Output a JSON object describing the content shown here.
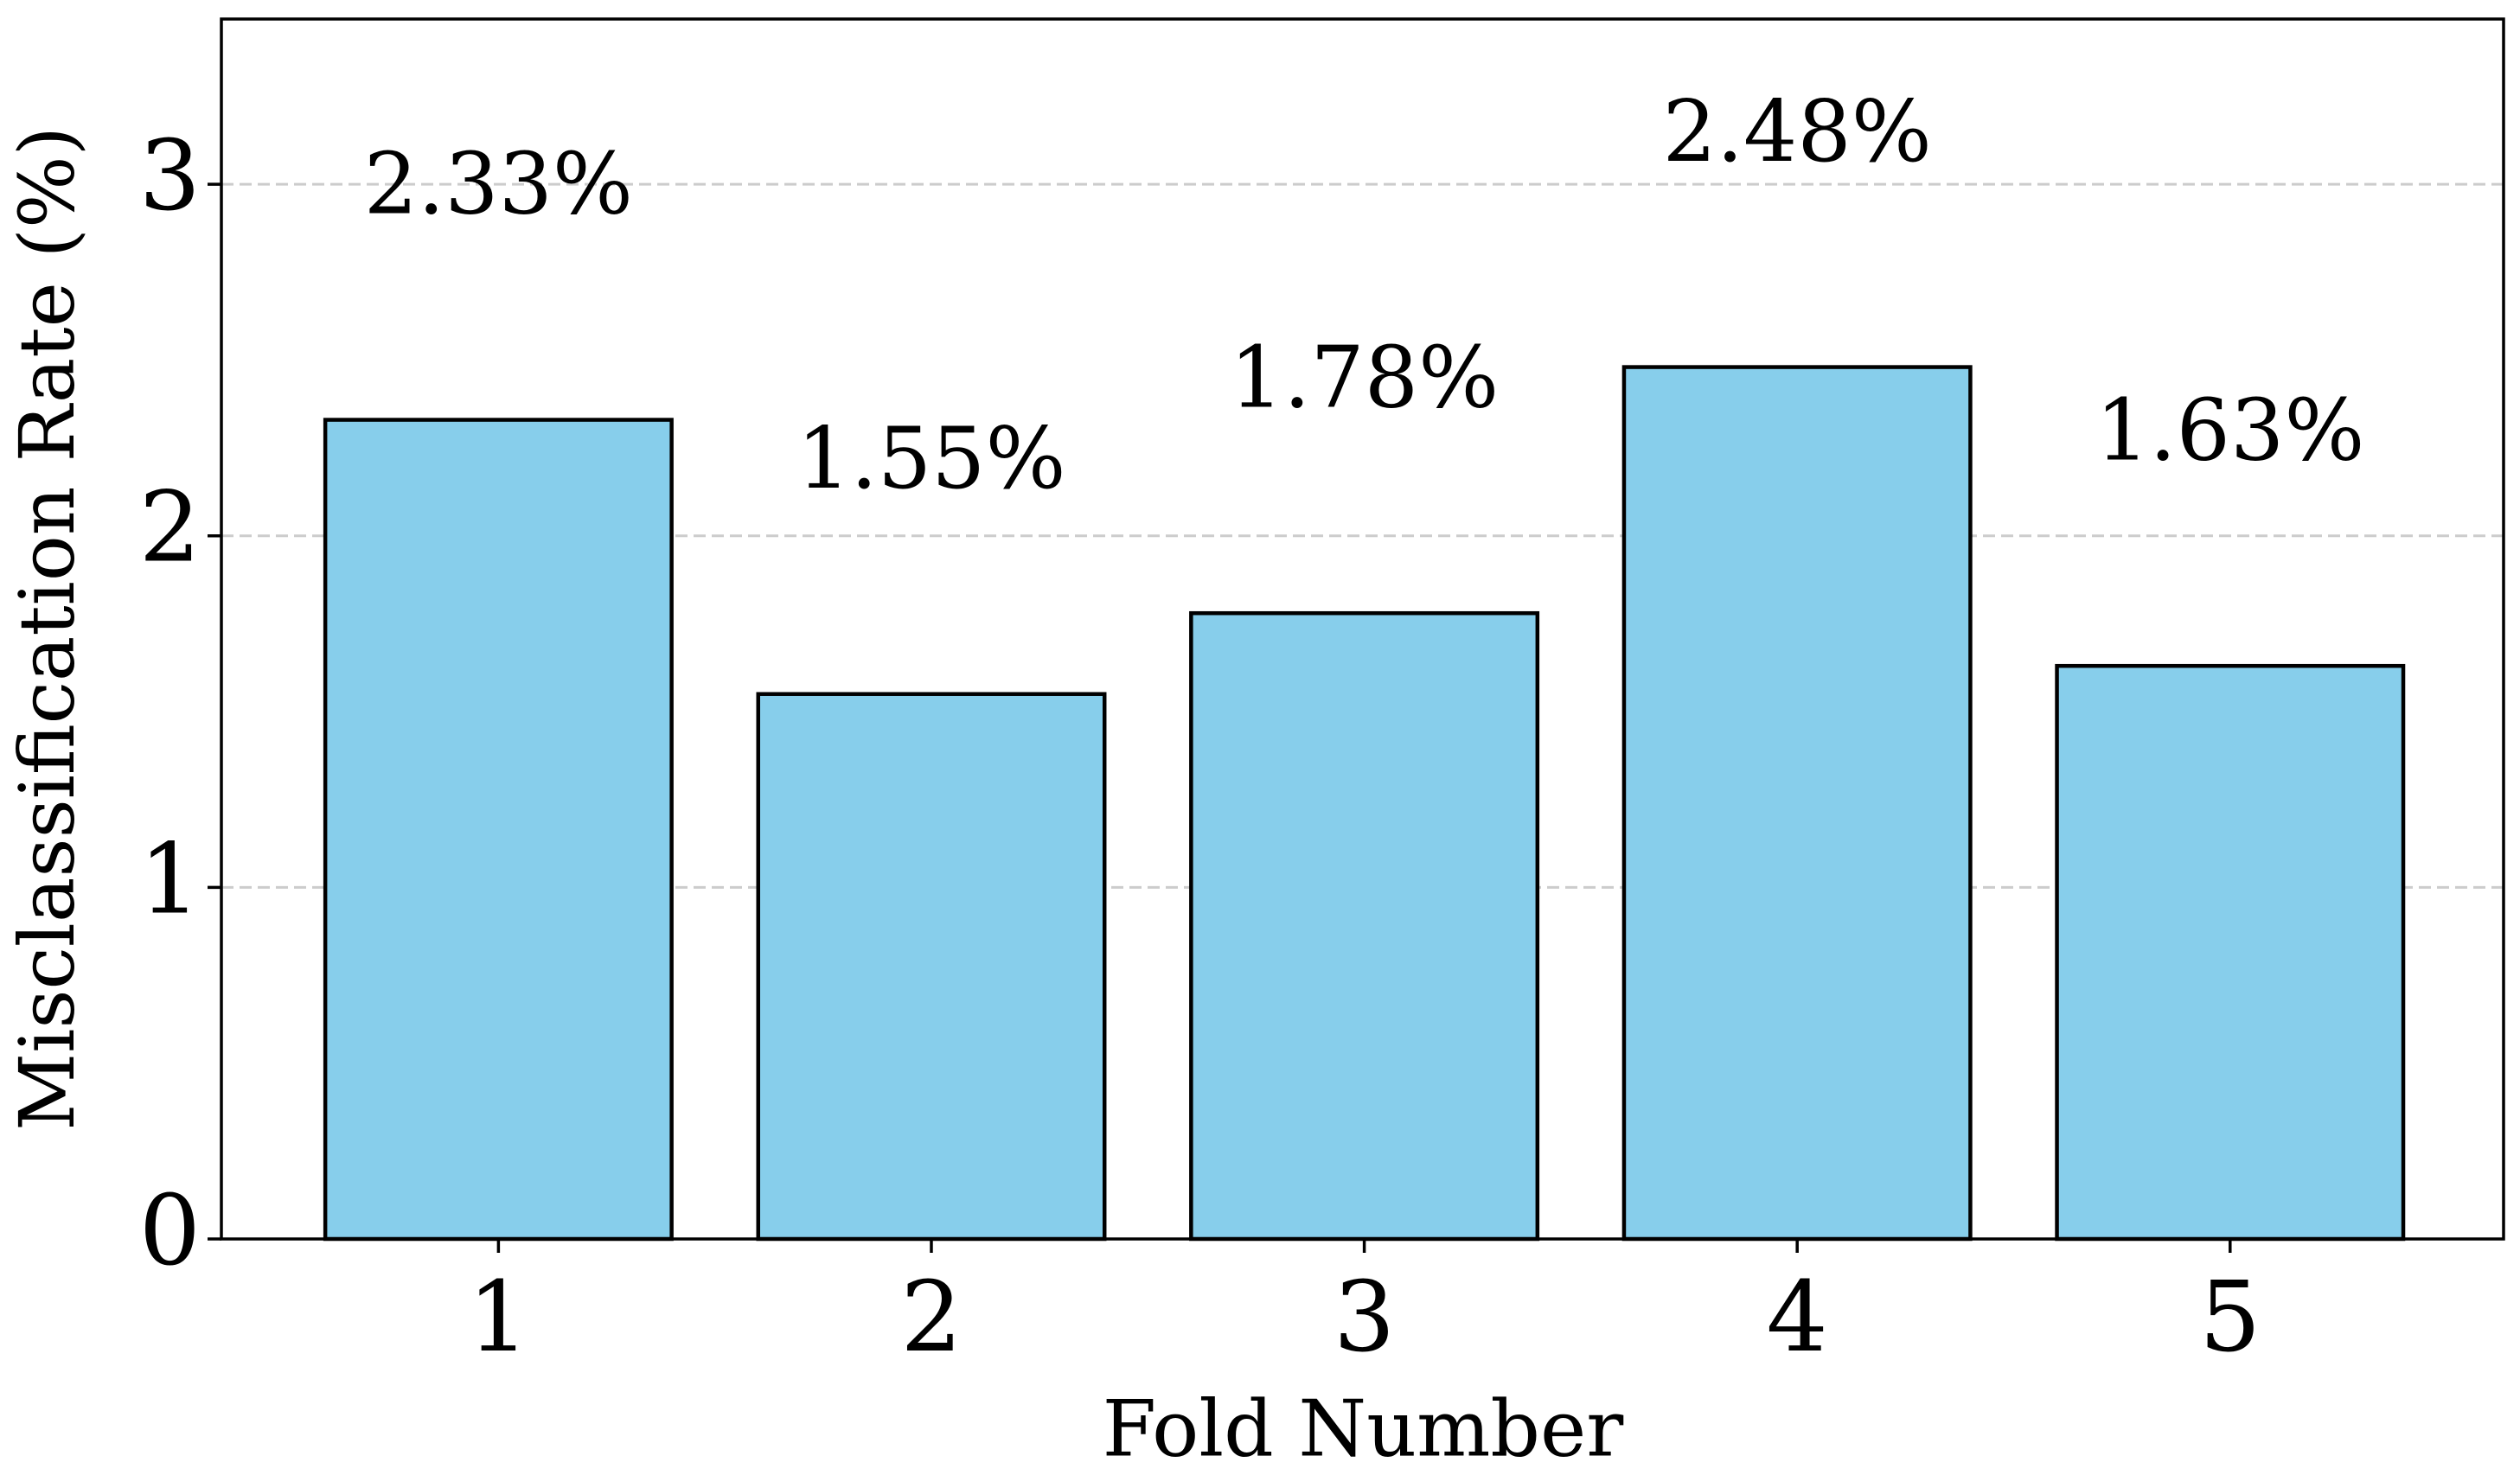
{
  "chart_data": {
    "type": "bar",
    "x_label": "Fold Number",
    "y_label": "Misclassification Rate (%)",
    "categories": [
      "1",
      "2",
      "3",
      "4",
      "5"
    ],
    "values": [
      2.33,
      1.55,
      1.78,
      2.48,
      1.63
    ],
    "value_labels": [
      "2.33%",
      "1.55%",
      "1.78%",
      "2.48%",
      "1.63%"
    ],
    "color": "#87ceeb",
    "edge_color": "#000000",
    "ylim": [
      0,
      3.47
    ],
    "yticks": [
      0,
      1,
      2,
      3
    ],
    "grid": true
  }
}
